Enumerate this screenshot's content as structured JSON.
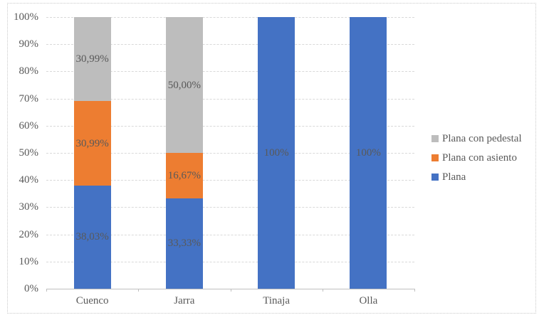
{
  "chart_data": {
    "type": "bar",
    "subtype": "stacked-100-percent-column",
    "title": "",
    "categories": [
      "Cuenco",
      "Jarra",
      "Tinaja",
      "Olla"
    ],
    "series": [
      {
        "name": "Plana",
        "color": "#4472C4",
        "values": [
          38.03,
          33.33,
          100,
          100
        ],
        "labels": [
          "38,03%",
          "33,33%",
          "100%",
          "100%"
        ]
      },
      {
        "name": "Plana con asiento",
        "color": "#ED7D31",
        "values": [
          30.99,
          16.67,
          0,
          0
        ],
        "labels": [
          "30,99%",
          "16,67%",
          "",
          ""
        ]
      },
      {
        "name": "Plana con pedestal",
        "color": "#BDBDBD",
        "values": [
          30.99,
          50.0,
          0,
          0
        ],
        "labels": [
          "30,99%",
          "50,00%",
          "",
          ""
        ]
      }
    ],
    "y_axis": {
      "min": 0,
      "max": 100,
      "tick_labels": [
        "0%",
        "10%",
        "20%",
        "30%",
        "40%",
        "50%",
        "60%",
        "70%",
        "80%",
        "90%",
        "100%"
      ]
    },
    "x_axis": {
      "tick_labels": [
        "Cuenco",
        "Jarra",
        "Tinaja",
        "Olla"
      ]
    },
    "legend": {
      "position": "right",
      "entries": [
        "Plana con pedestal",
        "Plana con asiento",
        "Plana"
      ]
    },
    "grid": true,
    "style_colors": {
      "grid": "#D9D9D9",
      "axis": "#BFBFBF",
      "text": "#595959",
      "frame": "#C9C9C9",
      "background": "#FFFFFF"
    }
  }
}
